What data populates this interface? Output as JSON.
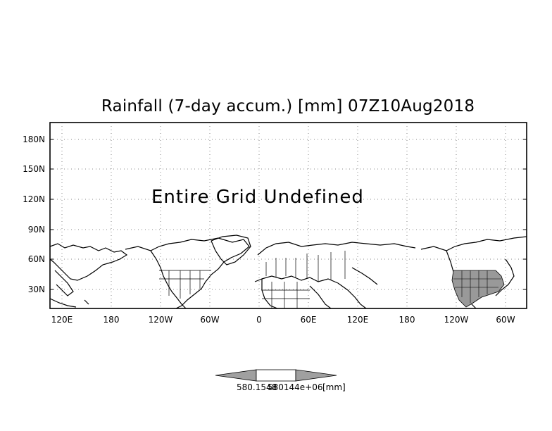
{
  "title": "Rainfall (7-day accum.) [mm] 07Z10Aug2018",
  "message": "Entire Grid Undefined",
  "y_ticks": [
    "180N",
    "150N",
    "120N",
    "90N",
    "60N",
    "30N"
  ],
  "x_ticks": [
    "120E",
    "180",
    "120W",
    "60W",
    "0",
    "60E",
    "120E",
    "180",
    "120W",
    "60W"
  ],
  "colorbar": {
    "label_left": "580.1548",
    "label_right": "580144e+06",
    "unit": "[mm]"
  },
  "colors": {
    "coast": "#000000",
    "shaded_region": "#999999",
    "grid": "#888888",
    "colorbar_arrow": "#a0a0a0"
  }
}
